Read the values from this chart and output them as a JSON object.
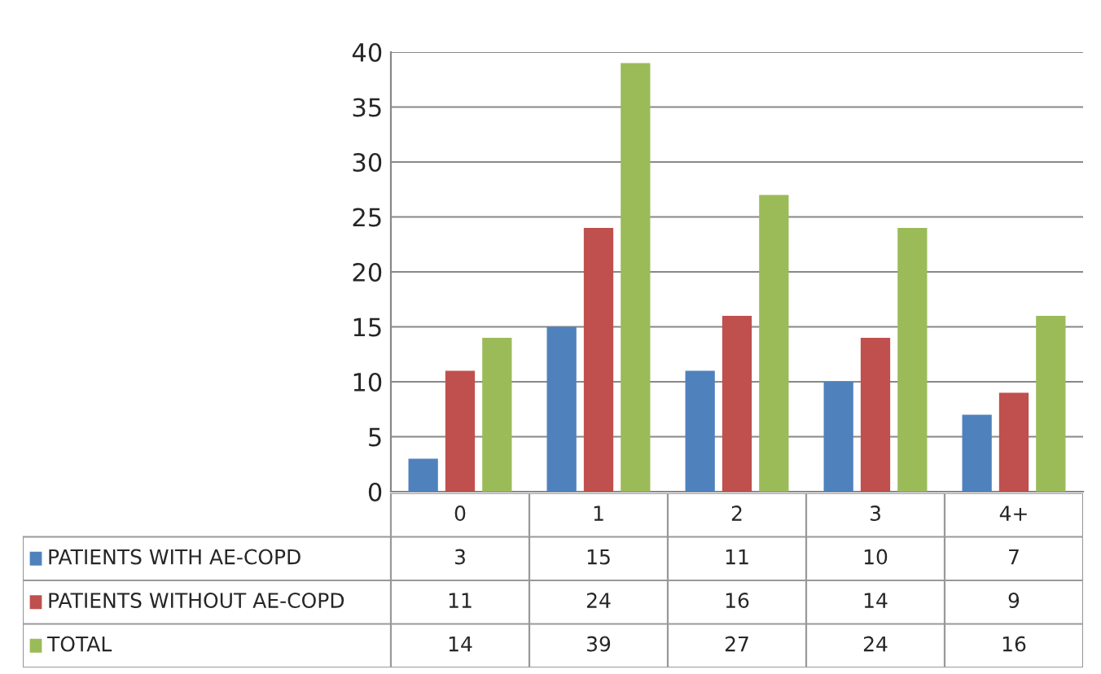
{
  "chart_data": {
    "type": "bar",
    "categories": [
      "0",
      "1",
      "2",
      "3",
      "4+"
    ],
    "series": [
      {
        "name": "PATIENTS WITH AE-COPD",
        "color": "#4f81bd",
        "values": [
          3,
          15,
          11,
          10,
          7
        ]
      },
      {
        "name": "PATIENTS WITHOUT AE-COPD",
        "color": "#c0504d",
        "values": [
          11,
          24,
          16,
          14,
          9
        ]
      },
      {
        "name": "TOTAL",
        "color": "#9bbb59",
        "values": [
          14,
          39,
          27,
          24,
          16
        ]
      }
    ],
    "ylim": [
      0,
      40
    ],
    "yticks": [
      0,
      5,
      10,
      15,
      20,
      25,
      30,
      35,
      40
    ],
    "grid": "y",
    "data_labels": true,
    "legend": "bottom"
  }
}
